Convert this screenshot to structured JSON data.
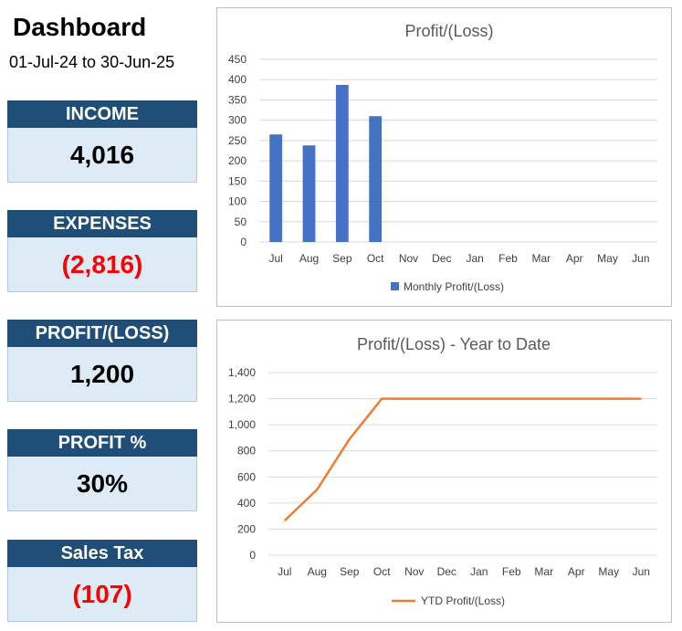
{
  "header": {
    "title": "Dashboard",
    "period": "01-Jul-24 to 30-Jun-25"
  },
  "kpis": [
    {
      "label": "INCOME",
      "value": "4,016",
      "negative": false
    },
    {
      "label": "EXPENSES",
      "value": "(2,816)",
      "negative": true
    },
    {
      "label": "PROFIT/(LOSS)",
      "value": "1,200",
      "negative": false
    },
    {
      "label": "PROFIT %",
      "value": "30%",
      "negative": false
    },
    {
      "label": "Sales Tax",
      "value": "(107)",
      "negative": true
    }
  ],
  "colors": {
    "kpi_header": "#1f4e79",
    "kpi_body": "#ddebf7",
    "negative": "#ff0000",
    "bar": "#4472c4",
    "line": "#ed7d31"
  },
  "chart_data": [
    {
      "type": "bar",
      "title": "Profit/(Loss)",
      "categories": [
        "Jul",
        "Aug",
        "Sep",
        "Oct",
        "Nov",
        "Dec",
        "Jan",
        "Feb",
        "Mar",
        "Apr",
        "May",
        "Jun"
      ],
      "series": [
        {
          "name": "Monthly Profit/(Loss)",
          "values": [
            265,
            238,
            387,
            310,
            null,
            null,
            null,
            null,
            null,
            null,
            null,
            null
          ]
        }
      ],
      "ylim": [
        0,
        450
      ],
      "yticks": [
        "0",
        "50",
        "100",
        "150",
        "200",
        "250",
        "300",
        "350",
        "400",
        "450"
      ],
      "grid": true,
      "legend": "bottom"
    },
    {
      "type": "line",
      "title": "Profit/(Loss) - Year to Date",
      "categories": [
        "Jul",
        "Aug",
        "Sep",
        "Oct",
        "Nov",
        "Dec",
        "Jan",
        "Feb",
        "Mar",
        "Apr",
        "May",
        "Jun"
      ],
      "series": [
        {
          "name": "YTD Profit/(Loss)",
          "values": [
            265,
            503,
            890,
            1200,
            1200,
            1200,
            1200,
            1200,
            1200,
            1200,
            1200,
            1200
          ]
        }
      ],
      "ylim": [
        0,
        1400
      ],
      "yticks": [
        "0",
        "200",
        "400",
        "600",
        "800",
        "1,000",
        "1,200",
        "1,400"
      ],
      "grid": true,
      "legend": "bottom"
    }
  ]
}
